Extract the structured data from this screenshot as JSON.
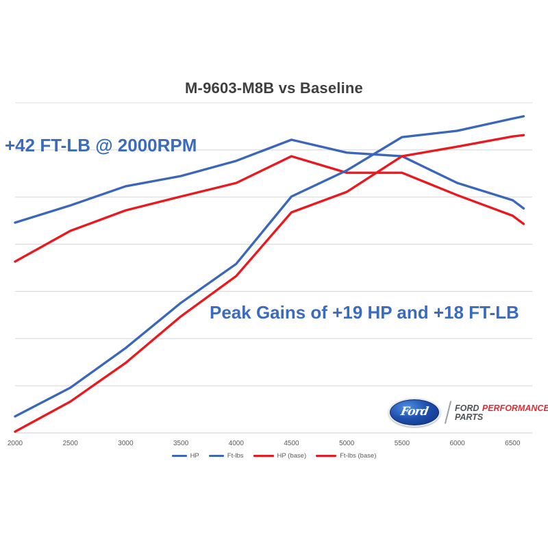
{
  "title": "M-9603-M8B vs Baseline",
  "annotations": {
    "low_end": "+42 FT-LB @ 2000RPM",
    "peak": "Peak Gains of +19 HP and +18 FT-LB"
  },
  "branding": {
    "oval_label": "Ford",
    "name_gray": "FORD",
    "name_red": "PERFORMANCE",
    "parts_label": "PARTS",
    "oval_blue": "#1e4fae",
    "performance_red": "#e32b33",
    "gray": "#4d5256"
  },
  "colors": {
    "series_new_blue": "#3b67ba",
    "series_base_red": "#e81a20",
    "annotation_blue": "#3a6bbf",
    "title_gray": "#3f3f3f",
    "grid_gray": "#d9d9d9",
    "axis_gray": "#c9cdd1",
    "tick_gray": "#595959",
    "background": "#ffffff"
  },
  "chart_data": {
    "type": "line",
    "title": "M-9603-M8B vs Baseline",
    "xlabel": "",
    "ylabel": "",
    "x_axis_note": "engine speed in RPM (axis unlabeled, ticks only)",
    "y_axis_note": "no y-axis scale shown; values below are percent of plot height (0 = bottom axis, 100 = top gridline)",
    "grid": "horizontal gridlines only, 8 lines including bottom axis",
    "legend_position": "bottom-center",
    "x_ticks": [
      2000,
      2500,
      3000,
      3500,
      4000,
      4500,
      5000,
      5500,
      6000,
      6500
    ],
    "x": [
      2000,
      2500,
      3000,
      3500,
      4000,
      4500,
      5000,
      5500,
      6000,
      6500,
      6600
    ],
    "series": [
      {
        "name": "HP",
        "color": "#3b67ba",
        "values": [
          5.0,
          13.7,
          25.7,
          39.4,
          51.2,
          71.6,
          79.5,
          89.6,
          91.5,
          95.2,
          95.9
        ]
      },
      {
        "name": "Ft-lbs",
        "color": "#3b67ba",
        "values": [
          63.7,
          68.9,
          74.7,
          77.8,
          82.4,
          88.8,
          84.9,
          83.8,
          75.7,
          70.5,
          68.0
        ]
      },
      {
        "name": "HP (base)",
        "color": "#e81a20",
        "values": [
          0.4,
          9.5,
          21.2,
          35.3,
          47.5,
          66.8,
          73.0,
          83.8,
          86.7,
          89.8,
          90.2
        ]
      },
      {
        "name": "Ft-lbs (base)",
        "color": "#e81a20",
        "values": [
          51.9,
          61.2,
          67.4,
          71.6,
          75.7,
          83.8,
          78.8,
          78.8,
          72.0,
          65.8,
          63.3
        ]
      }
    ],
    "draw_order": [
      1,
      3,
      0,
      2
    ]
  }
}
